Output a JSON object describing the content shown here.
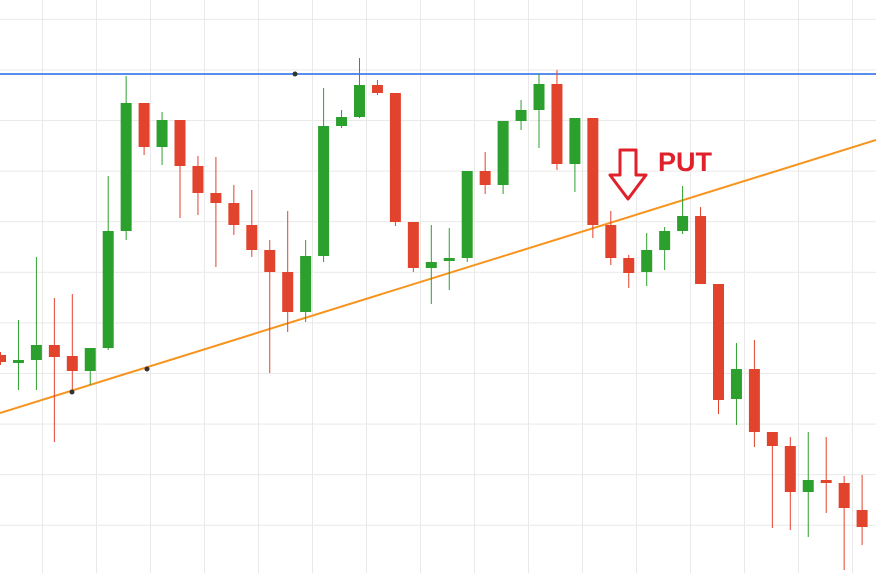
{
  "chart_data": {
    "type": "candlestick",
    "annotation": "PUT",
    "ylim": [
      0,
      573
    ],
    "up_color": "#2ca02c",
    "down_color": "#e2432d",
    "open": [
      218,
      210,
      213,
      228,
      217,
      202,
      225,
      342,
      470,
      426,
      453,
      407,
      380,
      370,
      348,
      323,
      301,
      261,
      317,
      447,
      456,
      488,
      480,
      351,
      305,
      312,
      315,
      402,
      388,
      452,
      463,
      489,
      409,
      455,
      348,
      315,
      301,
      323,
      342,
      357,
      289,
      174,
      204,
      141,
      127,
      81,
      93,
      90,
      63
    ],
    "high": [
      221,
      253,
      316,
      275,
      279,
      225,
      397,
      497,
      470,
      461,
      453,
      417,
      416,
      388,
      383,
      333,
      362,
      333,
      485,
      463,
      515,
      493,
      480,
      351,
      348,
      345,
      402,
      421,
      452,
      473,
      499,
      503,
      455,
      455,
      362,
      318,
      340,
      346,
      387,
      366,
      289,
      230,
      233,
      141,
      136,
      141,
      136,
      97,
      98
    ],
    "low": [
      208,
      183,
      183,
      131,
      183,
      188,
      223,
      333,
      418,
      408,
      355,
      358,
      306,
      338,
      316,
      200,
      241,
      251,
      311,
      445,
      455,
      478,
      347,
      301,
      269,
      283,
      311,
      379,
      379,
      443,
      425,
      403,
      381,
      335,
      308,
      285,
      287,
      303,
      339,
      289,
      159,
      148,
      126,
      45,
      43,
      36,
      60,
      3,
      28
    ],
    "close": [
      211,
      213,
      228,
      216,
      202,
      225,
      342,
      470,
      426,
      453,
      407,
      380,
      370,
      348,
      323,
      301,
      261,
      317,
      447,
      456,
      488,
      480,
      351,
      305,
      311,
      315,
      402,
      388,
      452,
      463,
      489,
      409,
      455,
      348,
      315,
      300,
      323,
      342,
      357,
      289,
      173,
      204,
      141,
      127,
      81,
      93,
      90,
      65,
      46
    ],
    "lines": [
      {
        "color": "#5b8def",
        "values": [
          499,
          499
        ]
      },
      {
        "color": "#f7941d",
        "values": [
          160,
          433
        ]
      }
    ]
  }
}
